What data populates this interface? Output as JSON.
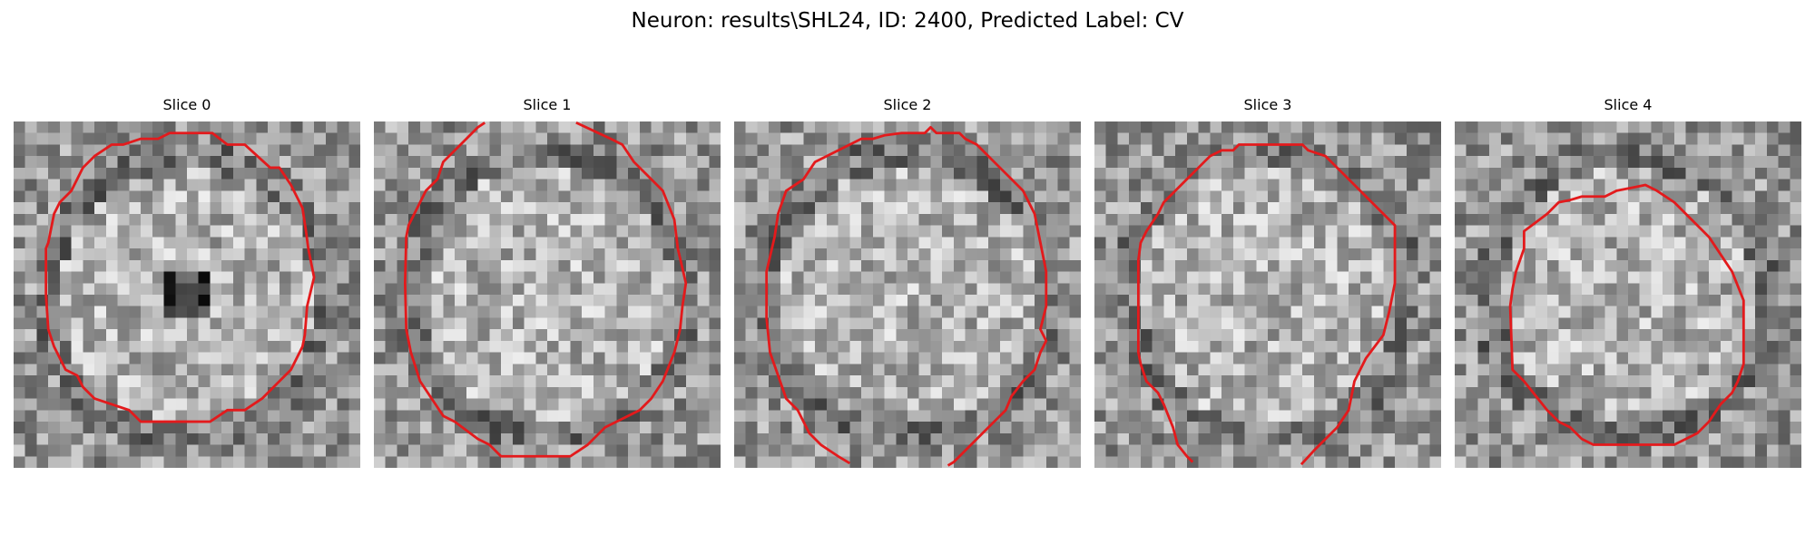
{
  "figure": {
    "title": "Neuron: results\\SHL24, ID: 2400, Predicted Label: CV"
  },
  "contour_color": "#e31a1c",
  "colormap": "gray",
  "grid_size": 30,
  "slices": [
    {
      "title": "Slice 0",
      "contour": [
        [
          13.5,
          1
        ],
        [
          17.2,
          1
        ],
        [
          18.5,
          2
        ],
        [
          20,
          2
        ],
        [
          22.2,
          4
        ],
        [
          23,
          4
        ],
        [
          24,
          5.5
        ],
        [
          25,
          7.5
        ],
        [
          25.3,
          9.5
        ],
        [
          25.5,
          11
        ],
        [
          26,
          13.5
        ],
        [
          25.4,
          16
        ],
        [
          25.2,
          18.5
        ],
        [
          25,
          19.5
        ],
        [
          24,
          21.5
        ],
        [
          23,
          22.5
        ],
        [
          21.5,
          24
        ],
        [
          20,
          25
        ],
        [
          18.5,
          25
        ],
        [
          17,
          26
        ],
        [
          11,
          26
        ],
        [
          10,
          25
        ],
        [
          8.5,
          24.5
        ],
        [
          7,
          24
        ],
        [
          6,
          23
        ],
        [
          5.5,
          22
        ],
        [
          4.5,
          21.5
        ],
        [
          3.5,
          19.5
        ],
        [
          3,
          18
        ],
        [
          2.8,
          15
        ],
        [
          2.8,
          11
        ],
        [
          3,
          10.5
        ],
        [
          3.5,
          8
        ],
        [
          4,
          7
        ],
        [
          5,
          6
        ],
        [
          6,
          4
        ],
        [
          7,
          3
        ],
        [
          8.5,
          2
        ],
        [
          9.5,
          2
        ],
        [
          11,
          1.5
        ],
        [
          12.5,
          1.5
        ]
      ],
      "closed": true,
      "seed": 17,
      "dark_center": true
    },
    {
      "title": "Slice 1",
      "contour": [
        [
          17.5,
          0.1
        ],
        [
          19,
          0.8
        ],
        [
          20.5,
          1.5
        ],
        [
          21.5,
          2
        ],
        [
          22.5,
          3.5
        ],
        [
          23.5,
          4.5
        ],
        [
          25,
          6
        ],
        [
          26,
          8.5
        ],
        [
          26.3,
          11
        ],
        [
          27,
          14
        ],
        [
          26.7,
          16
        ],
        [
          26.5,
          18
        ],
        [
          26,
          20
        ],
        [
          25,
          22.5
        ],
        [
          24,
          24
        ],
        [
          23,
          25
        ],
        [
          22,
          25.5
        ],
        [
          20,
          26.5
        ],
        [
          18.5,
          28
        ],
        [
          17,
          29
        ],
        [
          11,
          29
        ],
        [
          10,
          28
        ],
        [
          9,
          27.5
        ],
        [
          7,
          26
        ],
        [
          6,
          25.5
        ],
        [
          5,
          24
        ],
        [
          4,
          22.5
        ],
        [
          3.2,
          20
        ],
        [
          2.8,
          18
        ],
        [
          2.7,
          14
        ],
        [
          2.8,
          10
        ],
        [
          3,
          9
        ],
        [
          4.5,
          6
        ],
        [
          5.5,
          5
        ],
        [
          6,
          3.5
        ],
        [
          7,
          2.5
        ],
        [
          8,
          1.5
        ],
        [
          9,
          0.5
        ],
        [
          9.6,
          0.1
        ]
      ],
      "closed": false,
      "seed": 41,
      "dark_center": false
    },
    {
      "title": "Slice 2",
      "contour": [
        [
          10,
          29.6
        ],
        [
          9,
          29
        ],
        [
          7.5,
          28
        ],
        [
          6.5,
          27
        ],
        [
          5.5,
          25
        ],
        [
          4.5,
          24
        ],
        [
          3.8,
          22
        ],
        [
          3.1,
          20
        ],
        [
          2.8,
          17
        ],
        [
          2.8,
          13
        ],
        [
          3.5,
          10
        ],
        [
          3.8,
          8
        ],
        [
          4.5,
          6
        ],
        [
          6,
          5
        ],
        [
          7,
          3.5
        ],
        [
          8,
          3
        ],
        [
          9,
          2.5
        ],
        [
          10,
          2
        ],
        [
          11,
          1.5
        ],
        [
          12,
          1.5
        ],
        [
          13,
          1.2
        ],
        [
          14.5,
          1
        ],
        [
          16.5,
          1
        ],
        [
          17,
          0.5
        ],
        [
          17.5,
          1
        ],
        [
          19.5,
          1
        ],
        [
          20,
          1.5
        ],
        [
          21,
          2
        ],
        [
          22,
          3
        ],
        [
          23,
          4
        ],
        [
          24,
          5
        ],
        [
          25,
          6
        ],
        [
          26,
          8
        ],
        [
          26.5,
          10.5
        ],
        [
          27,
          13
        ],
        [
          27,
          16
        ],
        [
          26.5,
          18
        ],
        [
          27,
          19
        ],
        [
          26.5,
          20
        ],
        [
          26,
          21.5
        ],
        [
          25,
          22.5
        ],
        [
          24,
          23.8
        ],
        [
          23.5,
          25
        ],
        [
          22.5,
          26
        ],
        [
          21.5,
          27
        ],
        [
          20.5,
          28
        ],
        [
          20,
          28.5
        ],
        [
          19.5,
          29
        ],
        [
          19,
          29.5
        ],
        [
          18.5,
          29.8
        ]
      ],
      "closed": false,
      "seed": 73,
      "dark_center": false
    },
    {
      "title": "Slice 3",
      "contour": [
        [
          17.9,
          29.7
        ],
        [
          19,
          28.5
        ],
        [
          20,
          27.5
        ],
        [
          21,
          26.5
        ],
        [
          22,
          25
        ],
        [
          22.5,
          22.5
        ],
        [
          23.5,
          20.5
        ],
        [
          25,
          18.5
        ],
        [
          25.5,
          16.5
        ],
        [
          26,
          14
        ],
        [
          26,
          9
        ],
        [
          25,
          8
        ],
        [
          24,
          7
        ],
        [
          23,
          6
        ],
        [
          22,
          5
        ],
        [
          21,
          4
        ],
        [
          20,
          3
        ],
        [
          18.5,
          2.5
        ],
        [
          18,
          2
        ],
        [
          12.5,
          2
        ],
        [
          12,
          2.5
        ],
        [
          11,
          2.5
        ],
        [
          10,
          3
        ],
        [
          9.5,
          3.5
        ],
        [
          9,
          4
        ],
        [
          8,
          5
        ],
        [
          7,
          6
        ],
        [
          6,
          7
        ],
        [
          5.5,
          8
        ],
        [
          4.5,
          9.5
        ],
        [
          4,
          10.5
        ],
        [
          3.8,
          12
        ],
        [
          3.8,
          20
        ],
        [
          4,
          21
        ],
        [
          4.5,
          22.5
        ],
        [
          5.5,
          23.5
        ],
        [
          6,
          24.5
        ],
        [
          6.8,
          26.5
        ],
        [
          7.2,
          28
        ],
        [
          8,
          29
        ],
        [
          8.5,
          29.5
        ]
      ],
      "closed": false,
      "seed": 97,
      "dark_center": false
    },
    {
      "title": "Slice 4",
      "contour": [
        [
          15.5,
          5.7
        ],
        [
          16.5,
          5.5
        ],
        [
          17.5,
          6
        ],
        [
          19,
          7
        ],
        [
          20,
          8
        ],
        [
          21,
          9
        ],
        [
          22,
          10
        ],
        [
          23,
          11.5
        ],
        [
          24,
          13
        ],
        [
          25,
          15.5
        ],
        [
          25,
          21
        ],
        [
          24.5,
          22.5
        ],
        [
          24,
          23.5
        ],
        [
          23,
          24.5
        ],
        [
          22,
          26
        ],
        [
          21,
          27
        ],
        [
          20,
          27.5
        ],
        [
          19,
          28
        ],
        [
          12,
          28
        ],
        [
          11,
          27.5
        ],
        [
          10,
          26.5
        ],
        [
          9,
          26
        ],
        [
          8,
          25
        ],
        [
          6,
          22.5
        ],
        [
          5,
          21.5
        ],
        [
          4.8,
          16
        ],
        [
          5,
          14.5
        ],
        [
          5.3,
          13
        ],
        [
          6,
          11
        ],
        [
          6,
          9.5
        ],
        [
          8,
          8
        ],
        [
          9,
          7
        ],
        [
          10,
          6.8
        ],
        [
          11,
          6.5
        ],
        [
          13,
          6.5
        ],
        [
          14,
          6
        ]
      ],
      "closed": true,
      "seed": 131,
      "dark_center": false
    }
  ]
}
